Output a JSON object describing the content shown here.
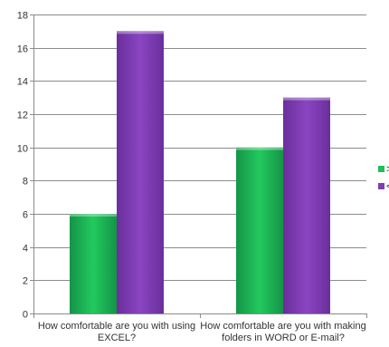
{
  "chart_data": {
    "type": "bar",
    "categories": [
      [
        "How comfortable are you with using",
        "EXCEL?"
      ],
      [
        "How comfortable are you with making",
        "folders in WORD or E-mail?"
      ]
    ],
    "series": [
      {
        "name": ">",
        "color": "#1fbf5a",
        "values": [
          6,
          10
        ]
      },
      {
        "name": "<",
        "color": "#7f3fb2",
        "values": [
          17,
          13
        ]
      }
    ],
    "ylim": [
      0,
      18
    ],
    "yticks": [
      0,
      2,
      4,
      6,
      8,
      10,
      12,
      14,
      16,
      18
    ],
    "grid": true,
    "legend_position": "right"
  }
}
